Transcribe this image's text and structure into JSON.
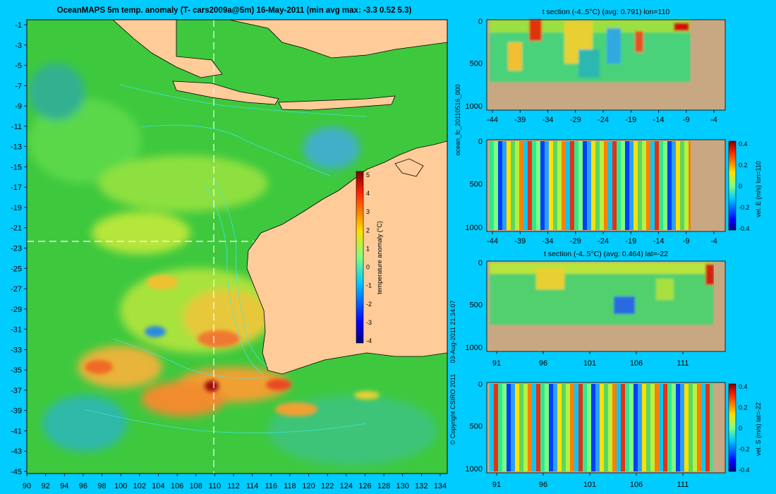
{
  "main_map": {
    "title": "OceanMAPS 5m temp. anomaly (T- cars2009a@5m) 16-May-2011 (min avg max: -3.3 0.52 5.3)",
    "lat_ticks": [
      "-1",
      "-3",
      "-5",
      "-7",
      "-9",
      "-11",
      "-13",
      "-15",
      "-17",
      "-19",
      "-21",
      "-23",
      "-25",
      "-27",
      "-29",
      "-31",
      "-33",
      "-35",
      "-37",
      "-39",
      "-41",
      "-43",
      "-45"
    ],
    "lon_ticks": [
      "90",
      "92",
      "94",
      "96",
      "98",
      "100",
      "102",
      "104",
      "106",
      "108",
      "110",
      "112",
      "114",
      "116",
      "118",
      "120",
      "122",
      "124",
      "126",
      "128",
      "130",
      "132",
      "134"
    ],
    "colorbar": {
      "label": "temperature anomaly (°C)",
      "ticks": [
        "5",
        "4",
        "3",
        "2",
        "1",
        "0",
        "-1",
        "-2",
        "-3",
        "-4"
      ]
    },
    "crosshair": {
      "lon": 110,
      "lat": -22
    }
  },
  "side_labels": {
    "run_id": "ocean_fc_20110516_000",
    "timestamp": "03-Aug-2011 21:34:07",
    "copyright": "© Copyright CSIRO 2011"
  },
  "panels": [
    {
      "title": "t section (-4..5°C) (avg: 0.791) lon=110",
      "y_ticks": [
        "0",
        "500",
        "1000"
      ],
      "x_ticks": [
        "-44",
        "-39",
        "-34",
        "-29",
        "-24",
        "-19",
        "-14",
        "-9",
        "-4"
      ]
    },
    {
      "title": "",
      "y_ticks": [
        "0",
        "500",
        "1000"
      ],
      "x_ticks": [
        "-44",
        "-39",
        "-34",
        "-29",
        "-24",
        "-19",
        "-14",
        "-9",
        "-4"
      ],
      "colorbar": {
        "label": "vel. E (m/s) lon=110",
        "ticks": [
          "0.4",
          "0.2",
          "0",
          "-0.2",
          "-0.4"
        ]
      }
    },
    {
      "title": "t section (-4..5°C) (avg: 0.464) lat=-22",
      "y_ticks": [
        "0",
        "500",
        "1000"
      ],
      "x_ticks": [
        "91",
        "96",
        "101",
        "106",
        "111"
      ]
    },
    {
      "title": "",
      "y_ticks": [
        "0",
        "500",
        "1000"
      ],
      "x_ticks": [
        "91",
        "96",
        "101",
        "106",
        "111"
      ],
      "colorbar": {
        "label": "vel. S (m/s) lat=-22",
        "ticks": [
          "0.4",
          "0.2",
          "0",
          "-0.2",
          "-0.4"
        ]
      }
    }
  ]
}
